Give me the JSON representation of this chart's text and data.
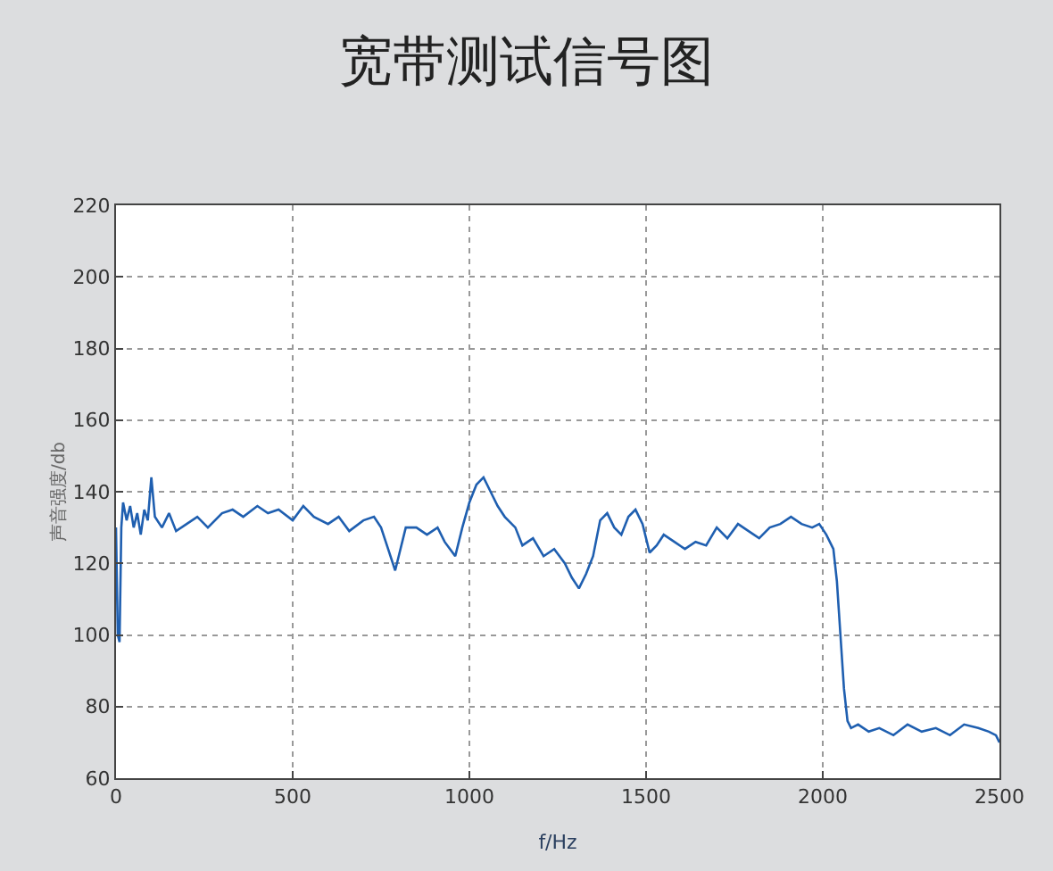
{
  "chart_data": {
    "type": "line",
    "title": "宽带测试信号图",
    "xlabel": "f/Hz",
    "ylabel": "声音强度/db",
    "x": [
      0,
      5,
      10,
      15,
      20,
      30,
      40,
      50,
      60,
      70,
      80,
      90,
      100,
      110,
      130,
      150,
      170,
      200,
      230,
      260,
      300,
      330,
      360,
      400,
      430,
      460,
      500,
      530,
      560,
      600,
      630,
      660,
      700,
      730,
      750,
      770,
      790,
      800,
      820,
      850,
      880,
      910,
      930,
      960,
      980,
      1000,
      1020,
      1040,
      1060,
      1080,
      1100,
      1130,
      1150,
      1180,
      1210,
      1240,
      1270,
      1290,
      1310,
      1330,
      1350,
      1370,
      1390,
      1410,
      1430,
      1450,
      1470,
      1490,
      1510,
      1530,
      1550,
      1580,
      1610,
      1640,
      1670,
      1700,
      1730,
      1760,
      1790,
      1820,
      1850,
      1880,
      1910,
      1940,
      1970,
      1990,
      2010,
      2030,
      2040,
      2050,
      2060,
      2070,
      2080,
      2100,
      2130,
      2160,
      2200,
      2240,
      2280,
      2320,
      2360,
      2400,
      2440,
      2470,
      2490,
      2500
    ],
    "series": [
      {
        "color": "#1f5fb0",
        "values": [
          130,
          100,
          98,
          130,
          137,
          132,
          136,
          130,
          134,
          128,
          135,
          132,
          144,
          133,
          130,
          134,
          129,
          131,
          133,
          130,
          134,
          135,
          133,
          136,
          134,
          135,
          132,
          136,
          133,
          131,
          133,
          129,
          132,
          133,
          130,
          124,
          118,
          122,
          130,
          130,
          128,
          130,
          126,
          122,
          130,
          137,
          142,
          144,
          140,
          136,
          133,
          130,
          125,
          127,
          122,
          124,
          120,
          116,
          113,
          117,
          122,
          132,
          134,
          130,
          128,
          133,
          135,
          131,
          123,
          125,
          128,
          126,
          124,
          126,
          125,
          130,
          127,
          131,
          129,
          127,
          130,
          131,
          133,
          131,
          130,
          131,
          128,
          124,
          115,
          100,
          85,
          76,
          74,
          75,
          73,
          74,
          72,
          75,
          73,
          74,
          72,
          75,
          74,
          73,
          72,
          70
        ]
      }
    ],
    "xlim": [
      0,
      2500
    ],
    "xticks": [
      0,
      500,
      1000,
      1500,
      2000,
      2500
    ],
    "ylim": [
      60,
      220
    ],
    "yticks": [
      60,
      80,
      100,
      120,
      140,
      160,
      180,
      200,
      220
    ],
    "grid": true,
    "marker": "none",
    "line_style": "solid"
  }
}
